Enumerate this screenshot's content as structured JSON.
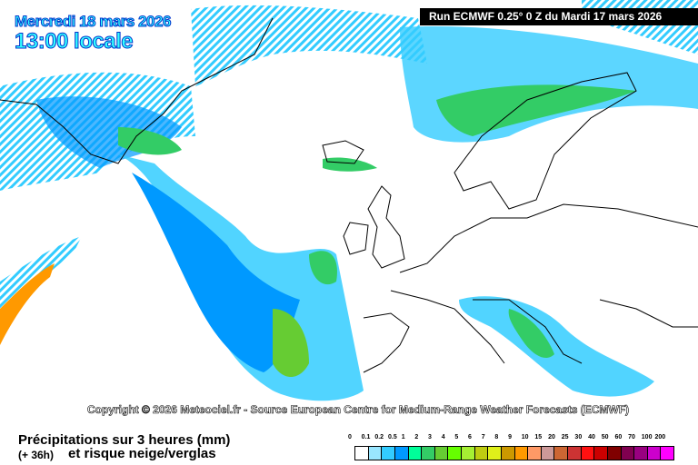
{
  "header": {
    "date": "Mercredi 18 mars 2026",
    "time": "13:00 locale",
    "run": "Run ECMWF 0.25° 0 Z du Mardi 17 mars 2026"
  },
  "map": {
    "copyright": "Copyright © 2026 Meteociel.fr - Source European Centre for Medium-Range Weather Forecasts (ECMWF)"
  },
  "footer": {
    "title": "Précipitations sur 3 heures (mm)",
    "lead": "(+ 36h)",
    "subtitle": "et risque neige/verglas"
  },
  "legend": {
    "labels": [
      "0",
      "0.1",
      "0.2",
      "0.5",
      "1",
      "2",
      "3",
      "4",
      "5",
      "6",
      "7",
      "8",
      "9",
      "10",
      "15",
      "20",
      "25",
      "30",
      "40",
      "50",
      "60",
      "70",
      "100",
      "200"
    ],
    "colors": [
      "#ffffff",
      "#99e6ff",
      "#33ccff",
      "#0099ff",
      "#00ff99",
      "#33cc66",
      "#66cc33",
      "#66ff00",
      "#a6f033",
      "#bfcc11",
      "#dff01a",
      "#cc9900",
      "#ff9900",
      "#ff9966",
      "#cc9999",
      "#cc6633",
      "#cc3333",
      "#ff1111",
      "#cc0000",
      "#800000",
      "#800050",
      "#990080",
      "#cc00cc",
      "#ff00ff"
    ]
  }
}
